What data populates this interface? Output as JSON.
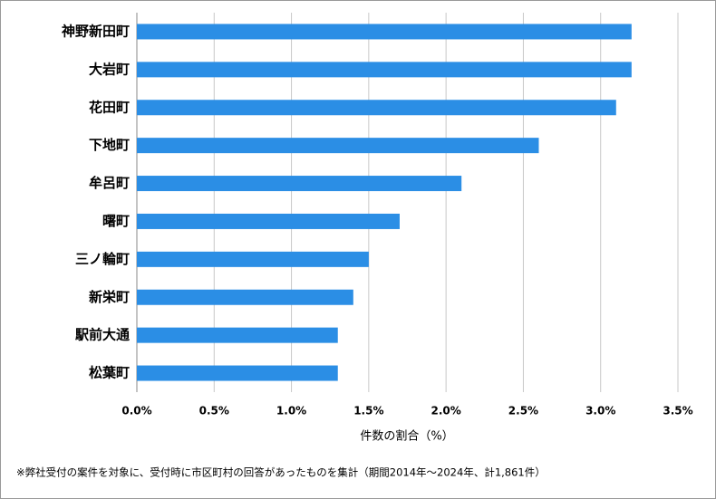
{
  "chart_data": {
    "type": "barh",
    "categories": [
      "神野新田町",
      "大岩町",
      "花田町",
      "下地町",
      "牟呂町",
      "曙町",
      "三ノ輪町",
      "新栄町",
      "駅前大通",
      "松葉町"
    ],
    "values": [
      3.2,
      3.2,
      3.1,
      2.6,
      2.1,
      1.7,
      1.5,
      1.4,
      1.3,
      1.3
    ],
    "color": "#2b8ee5",
    "xlim": [
      0,
      3.5
    ],
    "xticks": [
      {
        "value": 0,
        "label": "0.0%"
      },
      {
        "value": 0.5,
        "label": "0.5%"
      },
      {
        "value": 1,
        "label": "1.0%"
      },
      {
        "value": 1.5,
        "label": "1.5%"
      },
      {
        "value": 2,
        "label": "2.0%"
      },
      {
        "value": 2.5,
        "label": "2.5%"
      },
      {
        "value": 3,
        "label": "3.0%"
      },
      {
        "value": 3.5,
        "label": "3.5%"
      }
    ],
    "grid": true,
    "xlabel": "件数の割合（%）",
    "footnote": "※弊社受付の案件を対象に、受付時に市区町村の回答があったものを集計（期間2014年～2024年、計1,861件）"
  }
}
